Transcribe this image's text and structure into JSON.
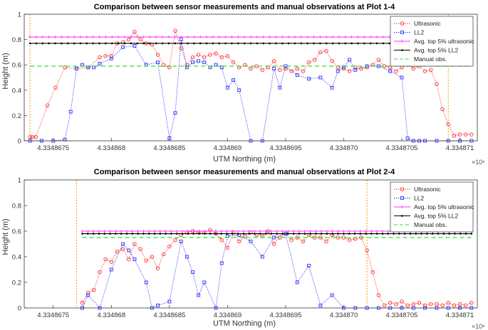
{
  "chart_data": [
    {
      "type": "line",
      "title": "Comparison between sensor measurements and manual observations at Plot 1-4",
      "xlabel": "UTM Northing (m)",
      "ylabel": "Height (m)",
      "x_exponent": "×10⁶",
      "xlim": [
        4.33486725,
        4.33487115
      ],
      "ylim": [
        0,
        1
      ],
      "yticks": [
        0,
        0.2,
        0.4,
        0.6,
        0.8,
        1
      ],
      "yticklabels": [
        "0",
        "0.2",
        "0.4",
        "0.6",
        "0.8",
        "1"
      ],
      "xticks": [
        4.3348675,
        4.334868,
        4.3348685,
        4.334869,
        4.3348695,
        4.33487,
        4.3348705,
        4.334871
      ],
      "xticklabels": [
        "4.3348675",
        "4.334868",
        "4.3348685",
        "4.334869",
        "4.3348695",
        "4.334870",
        "4.3348705",
        "4.334871"
      ],
      "vlines": [
        4.3348673,
        4.3348709
      ],
      "legend": [
        "Ultrasonic",
        "LL2",
        "Avg. top 5% ultrasonic",
        "Avg. top 5% LL2",
        "Manual obs."
      ],
      "legend_position": "top-right",
      "series": [
        {
          "name": "Ultrasonic",
          "color": "#ff3030",
          "marker": "circle",
          "x": [
            4.3348673,
            4.33486732,
            4.33486735,
            4.33486745,
            4.33486752,
            4.3348676,
            4.3348677,
            4.3348678,
            4.3348679,
            4.33486795,
            4.334868,
            4.33486805,
            4.3348681,
            4.33486815,
            4.3348682,
            4.33486825,
            4.3348683,
            4.33486835,
            4.3348684,
            4.33486845,
            4.3348685,
            4.33486855,
            4.3348686,
            4.33486865,
            4.3348687,
            4.33486875,
            4.3348688,
            4.33486885,
            4.3348689,
            4.33486895,
            4.334869,
            4.33486905,
            4.3348691,
            4.33486915,
            4.3348692,
            4.33486925,
            4.3348693,
            4.33486935,
            4.3348694,
            4.33486945,
            4.3348695,
            4.33486955,
            4.3348696,
            4.33486965,
            4.3348697,
            4.33486975,
            4.3348698,
            4.33486985,
            4.3348699,
            4.33486995,
            4.33487,
            4.33487005,
            4.3348701,
            4.33487015,
            4.3348702,
            4.33487025,
            4.3348703,
            4.33487035,
            4.3348704,
            4.33487045,
            4.3348705,
            4.33487055,
            4.3348706,
            4.33487065,
            4.3348707,
            4.33487075,
            4.3348708,
            4.33487085,
            4.3348709,
            4.33487095,
            4.334871,
            4.33487105,
            4.3348711
          ],
          "y": [
            0.03,
            0.03,
            0.03,
            0.28,
            0.42,
            0.58,
            0.57,
            0.58,
            0.66,
            0.67,
            0.67,
            0.77,
            0.78,
            0.8,
            0.86,
            0.8,
            0.77,
            0.76,
            0.68,
            0.6,
            0.58,
            0.87,
            0.73,
            0.6,
            0.66,
            0.68,
            0.66,
            0.68,
            0.69,
            0.66,
            0.67,
            0.62,
            0.58,
            0.6,
            0.57,
            0.59,
            0.56,
            0.58,
            0.63,
            0.56,
            0.57,
            0.55,
            0.57,
            0.55,
            0.62,
            0.64,
            0.7,
            0.71,
            0.63,
            0.58,
            0.57,
            0.55,
            0.58,
            0.57,
            0.58,
            0.6,
            0.64,
            0.59,
            0.58,
            0.55,
            0.58,
            0.6,
            0.57,
            0.59,
            0.55,
            0.56,
            0.45,
            0.25,
            0.13,
            0.04,
            0.05,
            0.05,
            0.05
          ]
        },
        {
          "name": "LL2",
          "color": "#3333ff",
          "marker": "square",
          "x": [
            4.3348673,
            4.3348674,
            4.3348675,
            4.3348676,
            4.33486765,
            4.3348677,
            4.33486775,
            4.3348678,
            4.33486785,
            4.3348679,
            4.334868,
            4.3348681,
            4.3348682,
            4.3348683,
            4.3348684,
            4.3348685,
            4.33486855,
            4.3348686,
            4.33486865,
            4.3348687,
            4.33486875,
            4.3348688,
            4.33486885,
            4.3348689,
            4.33486895,
            4.334869,
            4.33486905,
            4.3348691,
            4.3348692,
            4.3348693,
            4.3348694,
            4.33486945,
            4.3348695,
            4.3348696,
            4.3348697,
            4.3348698,
            4.3348699,
            4.33486995,
            4.33487,
            4.33487005,
            4.3348701,
            4.3348702,
            4.3348703,
            4.3348704,
            4.3348705,
            4.33487055,
            4.3348706,
            4.33487065,
            4.3348707,
            4.3348708,
            4.3348709,
            4.334871,
            4.3348711
          ],
          "y": [
            0,
            0,
            0,
            0.01,
            0.23,
            0.57,
            0.6,
            0.58,
            0.58,
            0.61,
            0.65,
            0.74,
            0.75,
            0.6,
            0.62,
            0.02,
            0.22,
            0.8,
            0.58,
            0.62,
            0.63,
            0.62,
            0.58,
            0.6,
            0.58,
            0.42,
            0.48,
            0.4,
            0,
            0,
            0.57,
            0.42,
            0.59,
            0.52,
            0.49,
            0.5,
            0.42,
            0.55,
            0.58,
            0.64,
            0.56,
            0.59,
            0.59,
            0.55,
            0.5,
            0.02,
            0,
            0,
            0,
            0,
            0,
            0,
            0
          ]
        },
        {
          "name": "Avg. top 5% ultrasonic",
          "color": "#ff33ff",
          "marker": "plus",
          "constant": 0.82
        },
        {
          "name": "Avg. top 5% LL2",
          "color": "#000000",
          "marker": "dot",
          "constant": 0.77
        },
        {
          "name": "Manual obs.",
          "color": "#33dd33",
          "dashed": true,
          "constant": 0.59
        }
      ]
    },
    {
      "type": "line",
      "title": "Comparison between sensor measurements and manual observations at Plot 2-4",
      "xlabel": "UTM Northing (m)",
      "ylabel": "Height (m)",
      "x_exponent": "×10⁶",
      "xlim": [
        4.33486725,
        4.33487115
      ],
      "ylim": [
        0,
        1
      ],
      "yticks": [
        0,
        0.2,
        0.4,
        0.6,
        0.8,
        1
      ],
      "yticklabels": [
        "0",
        "0.2",
        "0.4",
        "0.6",
        "0.8",
        "1"
      ],
      "xticks": [
        4.3348675,
        4.334868,
        4.3348685,
        4.334869,
        4.3348695,
        4.33487,
        4.3348705,
        4.334871
      ],
      "xticklabels": [
        "4.3348675",
        "4.334868",
        "4.3348685",
        "4.334869",
        "4.3348695",
        "4.334870",
        "4.3348705",
        "4.334871"
      ],
      "vlines": [
        4.3348677,
        4.3348702
      ],
      "legend": [
        "Ultrasonic",
        "LL2",
        "Avg. top 5% ultrasonic",
        "Avg. top 5% LL2",
        "Manual obs."
      ],
      "legend_position": "top-right",
      "series": [
        {
          "name": "Ultrasonic",
          "color": "#ff3030",
          "marker": "circle",
          "x": [
            4.33486775,
            4.3348678,
            4.33486785,
            4.3348679,
            4.33486795,
            4.334868,
            4.33486805,
            4.3348681,
            4.33486815,
            4.3348682,
            4.33486825,
            4.3348683,
            4.33486835,
            4.3348684,
            4.33486845,
            4.3348685,
            4.33486855,
            4.3348686,
            4.33486865,
            4.3348687,
            4.33486875,
            4.3348688,
            4.33486885,
            4.3348689,
            4.33486895,
            4.334869,
            4.33486905,
            4.3348691,
            4.33486915,
            4.3348692,
            4.33486925,
            4.3348693,
            4.33486935,
            4.3348694,
            4.33486945,
            4.3348695,
            4.33486955,
            4.3348696,
            4.33486965,
            4.3348697,
            4.33486975,
            4.3348698,
            4.33486985,
            4.3348699,
            4.33486995,
            4.33487,
            4.33487005,
            4.3348701,
            4.33487015,
            4.3348702,
            4.33487025,
            4.3348703,
            4.33487035,
            4.3348704,
            4.33487045,
            4.3348705,
            4.33487055,
            4.3348706,
            4.33487065,
            4.3348707,
            4.33487075,
            4.3348708,
            4.33487085,
            4.3348709,
            4.33487095,
            4.334871,
            4.33487105,
            4.3348711
          ],
          "y": [
            0.04,
            0.12,
            0.14,
            0.28,
            0.38,
            0.36,
            0.44,
            0.46,
            0.38,
            0.5,
            0.46,
            0.37,
            0.4,
            0.31,
            0.42,
            0.48,
            0.53,
            0.57,
            0.59,
            0.6,
            0.59,
            0.59,
            0.61,
            0.58,
            0.53,
            0.47,
            0.59,
            0.52,
            0.56,
            0.59,
            0.57,
            0.56,
            0.6,
            0.5,
            0.55,
            0.58,
            0.53,
            0.55,
            0.52,
            0.57,
            0.55,
            0.55,
            0.52,
            0.57,
            0.55,
            0.55,
            0.53,
            0.54,
            0.55,
            0.45,
            0.28,
            0.1,
            0.02,
            0.04,
            0.03,
            0.05,
            0.02,
            0.03,
            0.04,
            0.02,
            0.03,
            0.03,
            0.02,
            0.04,
            0.02,
            0.03,
            0.02,
            0.04
          ]
        },
        {
          "name": "LL2",
          "color": "#3333ff",
          "marker": "square",
          "x": [
            4.33486775,
            4.3348678,
            4.3348679,
            4.334868,
            4.3348681,
            4.33486815,
            4.3348682,
            4.3348683,
            4.33486835,
            4.3348684,
            4.3348685,
            4.3348686,
            4.33486865,
            4.3348687,
            4.33486875,
            4.3348688,
            4.3348689,
            4.33486895,
            4.334869,
            4.3348691,
            4.3348692,
            4.3348693,
            4.3348694,
            4.3348695,
            4.3348696,
            4.3348697,
            4.3348698,
            4.3348699,
            4.33487,
            4.3348701,
            4.3348702,
            4.3348703,
            4.3348704,
            4.3348705,
            4.3348706,
            4.3348707,
            4.3348708,
            4.3348709,
            4.334871,
            4.3348711
          ],
          "y": [
            0,
            0.1,
            0,
            0.3,
            0.5,
            0.45,
            0.38,
            0.2,
            0,
            0.02,
            0.05,
            0.52,
            0.4,
            0.28,
            0.1,
            0.2,
            0,
            0.35,
            0.56,
            0.57,
            0.52,
            0.4,
            0.55,
            0.58,
            0.2,
            0.33,
            0.02,
            0.1,
            0,
            0,
            0,
            0,
            0,
            0,
            0,
            0,
            0,
            0,
            0,
            0
          ]
        },
        {
          "name": "Avg. top 5% ultrasonic",
          "color": "#ff33ff",
          "marker": "plus",
          "constant": 0.6
        },
        {
          "name": "Avg. top 5% LL2",
          "color": "#000000",
          "marker": "dot",
          "constant": 0.58
        },
        {
          "name": "Manual obs.",
          "color": "#33dd33",
          "dashed": true,
          "constant": 0.55
        }
      ]
    }
  ]
}
